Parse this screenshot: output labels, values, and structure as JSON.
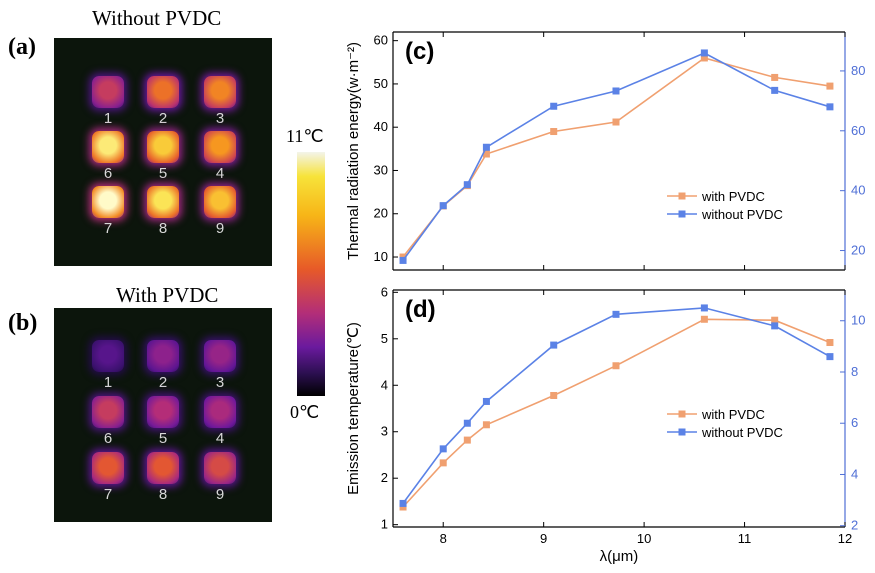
{
  "panels": {
    "a": {
      "label": "(a)",
      "title": "Without  PVDC"
    },
    "b": {
      "label": "(b)",
      "title": "With PVDC"
    },
    "c": {
      "label": "(c)"
    },
    "d": {
      "label": "(d)"
    }
  },
  "heatmaps": {
    "without_pvdc": {
      "rows": [
        [
          {
            "n": "1",
            "level": 0.55
          },
          {
            "n": "2",
            "level": 0.7
          },
          {
            "n": "3",
            "level": 0.74
          }
        ],
        [
          {
            "n": "6",
            "level": 0.95
          },
          {
            "n": "5",
            "level": 0.88
          },
          {
            "n": "4",
            "level": 0.78
          }
        ],
        [
          {
            "n": "7",
            "level": 1.0
          },
          {
            "n": "8",
            "level": 0.93
          },
          {
            "n": "9",
            "level": 0.86
          }
        ]
      ]
    },
    "with_pvdc": {
      "rows": [
        [
          {
            "n": "1",
            "level": 0.3
          },
          {
            "n": "2",
            "level": 0.42
          },
          {
            "n": "3",
            "level": 0.44
          }
        ],
        [
          {
            "n": "6",
            "level": 0.55
          },
          {
            "n": "5",
            "level": 0.5
          },
          {
            "n": "4",
            "level": 0.48
          }
        ],
        [
          {
            "n": "7",
            "level": 0.64
          },
          {
            "n": "8",
            "level": 0.64
          },
          {
            "n": "9",
            "level": 0.6
          }
        ]
      ]
    }
  },
  "colorbar": {
    "max_label": "11℃",
    "min_label": "0℃"
  },
  "colors": {
    "with_pvdc": "#f0a070",
    "without_pvdc": "#5b82e6",
    "right_axis": "#4f6fd6"
  },
  "chart_data": [
    {
      "type": "line",
      "panel": "(c)",
      "xlabel": "",
      "ylabel": "Thermal radiation energy(w·m⁻²)",
      "xlim": [
        7.5,
        12
      ],
      "ylim_left": [
        7,
        62
      ],
      "yticks_left": [
        10,
        20,
        30,
        40,
        50,
        60
      ],
      "ylim_right": [
        13.5,
        93
      ],
      "yticks_right": [
        20,
        40,
        60,
        80
      ],
      "x": [
        7.6,
        8.0,
        8.24,
        8.43,
        9.1,
        9.72,
        10.6,
        11.3,
        11.85
      ],
      "series": [
        {
          "name": "with PVDC",
          "axis": "left",
          "values": [
            10,
            21.8,
            26.5,
            33.8,
            39.0,
            41.2,
            56.0,
            51.5,
            49.5
          ]
        },
        {
          "name": "without PVDC",
          "axis": "right",
          "values": [
            16.7,
            35.0,
            42.0,
            54.5,
            68.2,
            73.3,
            86.0,
            73.5,
            68.0
          ]
        }
      ],
      "legend": "right"
    },
    {
      "type": "line",
      "panel": "(d)",
      "xlabel": "λ(μm)",
      "ylabel": "Emission temperature(℃)",
      "xlim": [
        7.5,
        12
      ],
      "xticks": [
        8,
        9,
        10,
        11,
        12
      ],
      "ylim_left": [
        0.95,
        6.05
      ],
      "yticks_left": [
        1,
        2,
        3,
        4,
        5,
        6
      ],
      "ylim_right": [
        1.95,
        11.2
      ],
      "yticks_right": [
        2,
        4,
        6,
        8,
        10
      ],
      "x": [
        7.6,
        8.0,
        8.24,
        8.43,
        9.1,
        9.72,
        10.6,
        11.3,
        11.85
      ],
      "series": [
        {
          "name": "with PVDC",
          "axis": "left",
          "values": [
            1.38,
            2.33,
            2.82,
            3.15,
            3.78,
            4.42,
            5.42,
            5.4,
            4.92
          ]
        },
        {
          "name": "without PVDC",
          "axis": "right",
          "values": [
            2.87,
            5.0,
            6.0,
            6.85,
            9.05,
            10.25,
            10.5,
            9.8,
            8.6
          ]
        }
      ],
      "legend": "right"
    }
  ]
}
